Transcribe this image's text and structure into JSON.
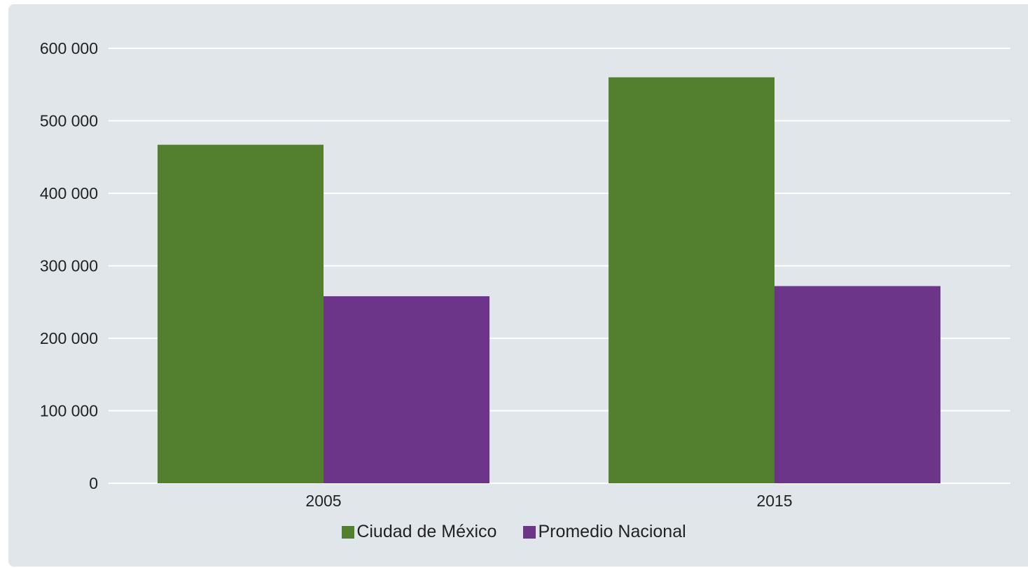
{
  "chart_data": {
    "type": "bar",
    "categories": [
      "2005",
      "2015"
    ],
    "series": [
      {
        "name": "Ciudad de México",
        "values": [
          467000,
          560000
        ],
        "color": "#52802f"
      },
      {
        "name": "Promedio Nacional",
        "values": [
          258000,
          272000
        ],
        "color": "#6c3589"
      }
    ],
    "ylim": [
      0,
      600000
    ],
    "yticks": [
      0,
      100000,
      200000,
      300000,
      400000,
      500000,
      600000
    ],
    "ytick_labels": [
      "0",
      "100 000",
      "200 000",
      "300 000",
      "400 000",
      "500 000",
      "600 000"
    ],
    "grid": true,
    "legend_position": "bottom-center",
    "background_color": "#e1e6ea",
    "gridline_color": "#ffffff"
  }
}
